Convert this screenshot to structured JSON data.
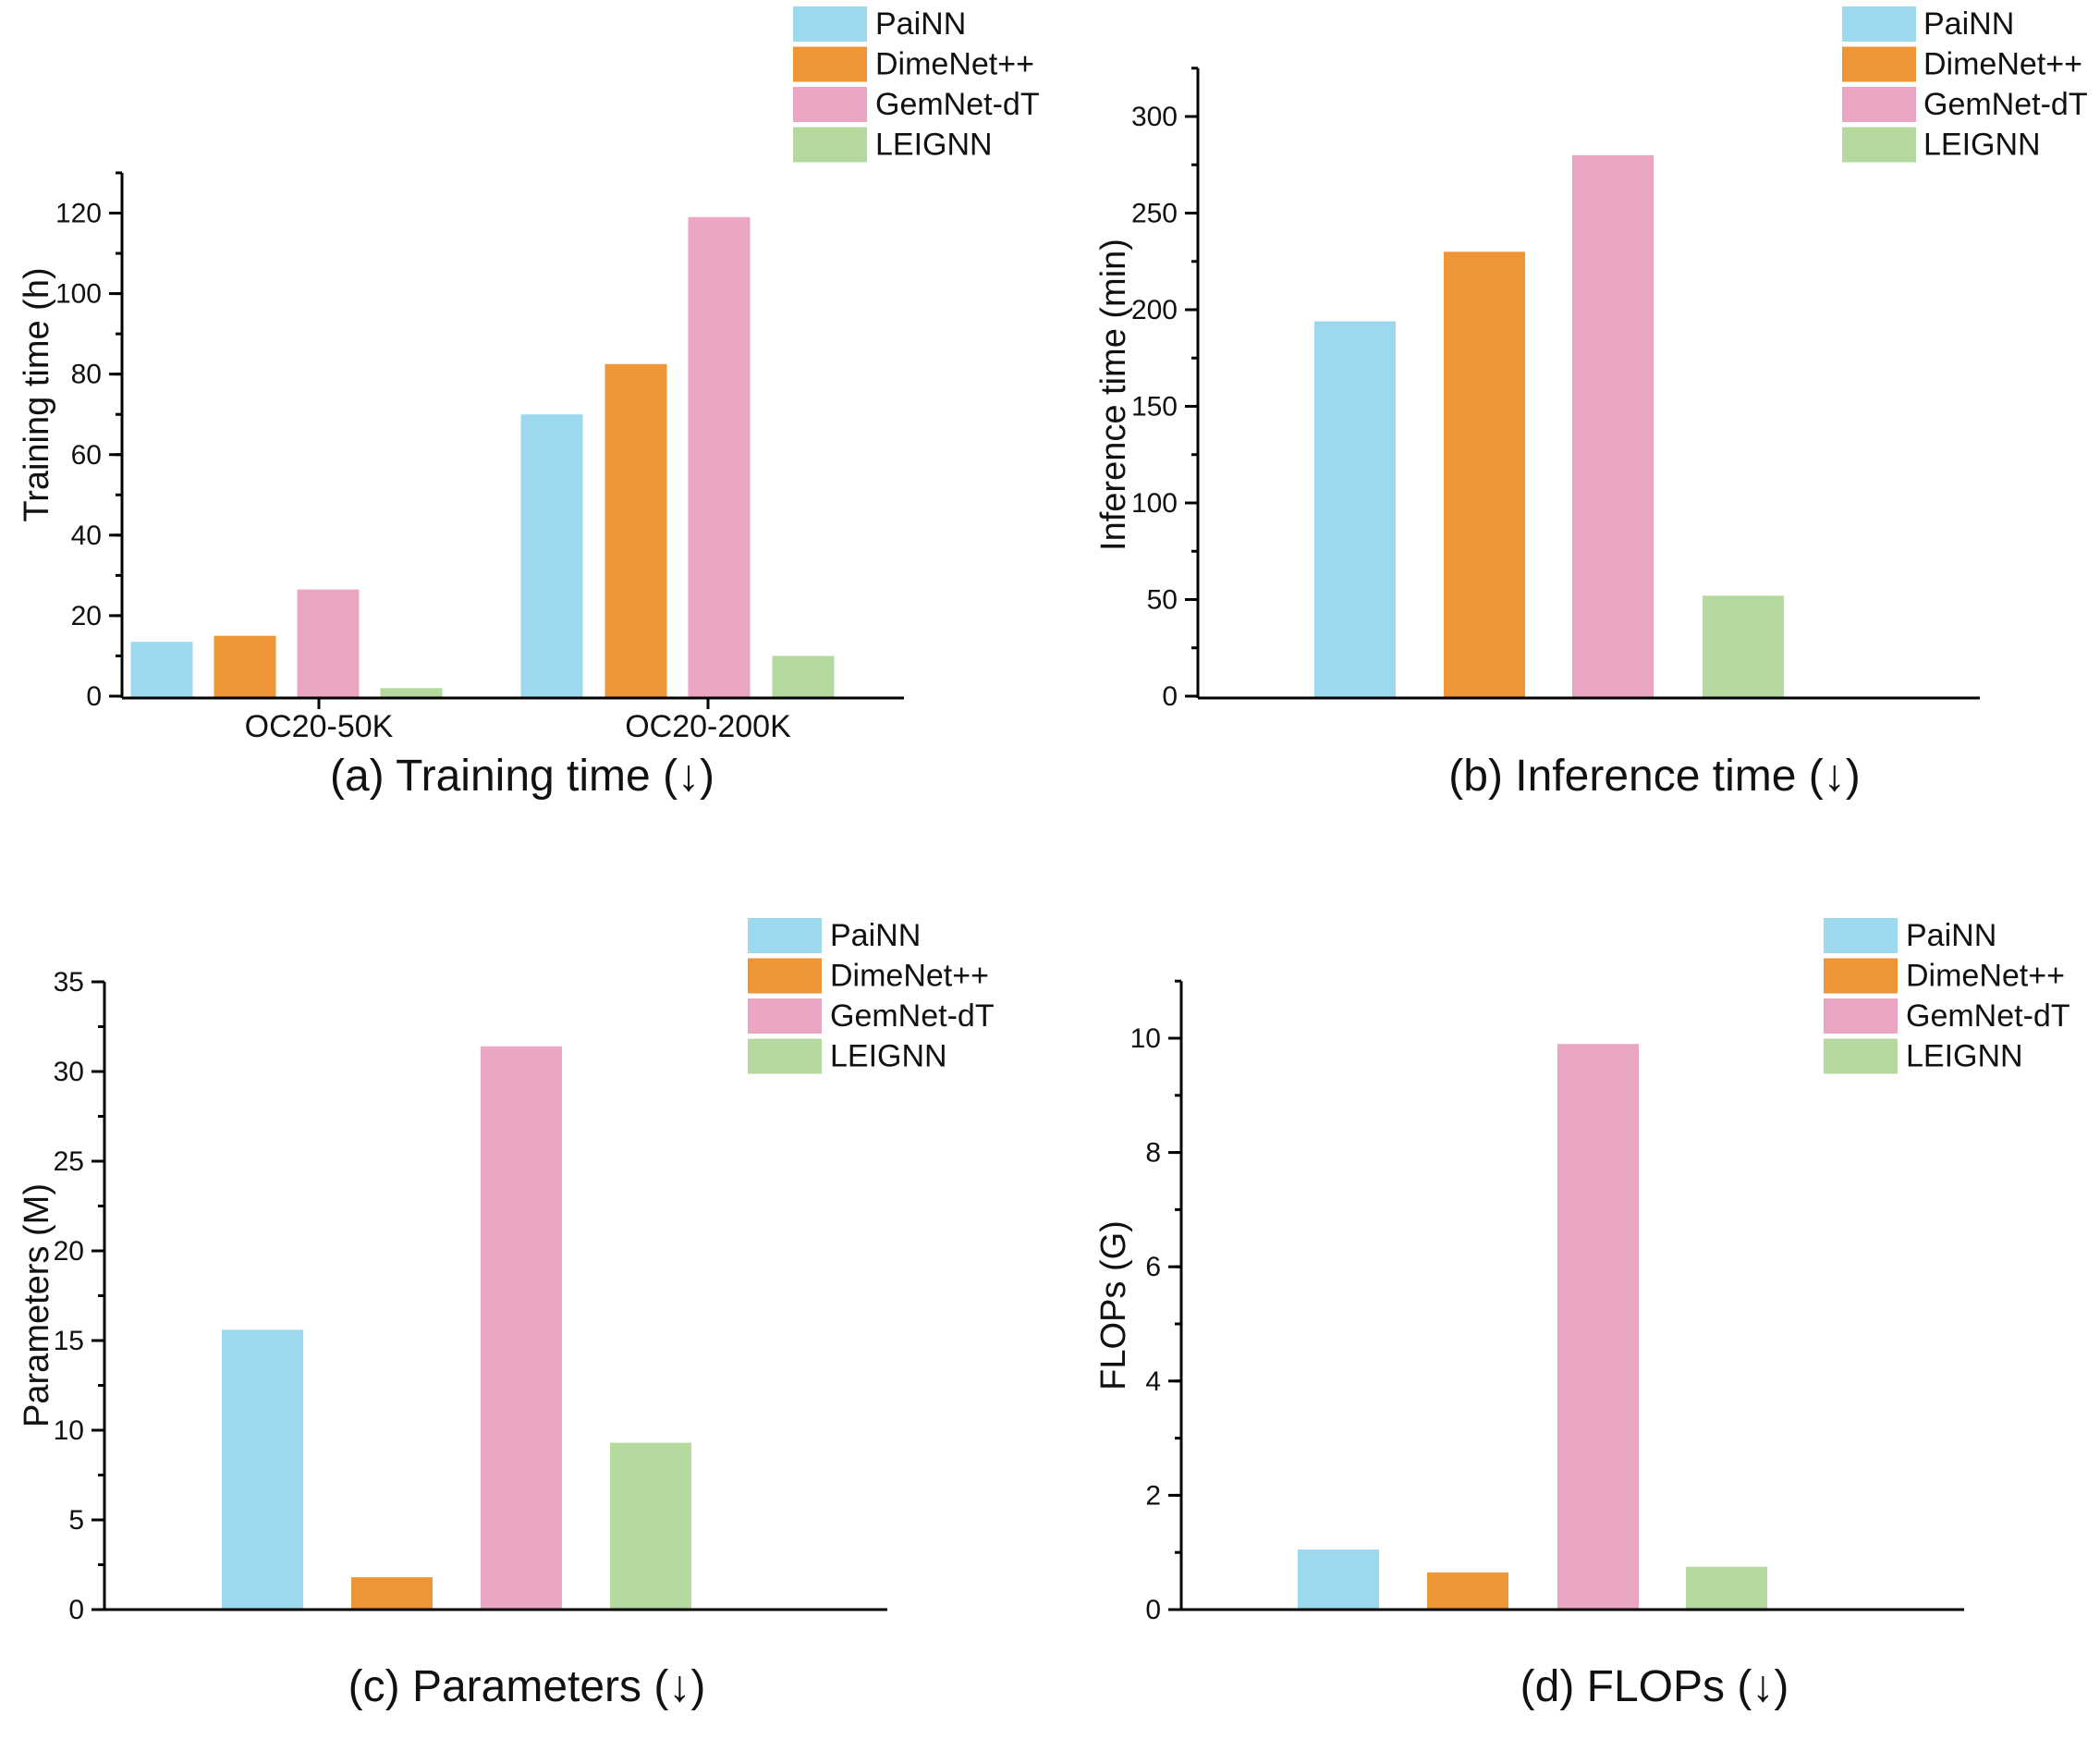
{
  "series_colors": {
    "PaiNN": "#9dd9ee",
    "DimeNet++": "#ee9637",
    "GemNet-dT": "#eaa6c2",
    "LEIGNN": "#b5d89f"
  },
  "chart_data": [
    {
      "type": "bar",
      "caption": "(a) Training time (↓)",
      "ylabel": "Training time (h)",
      "ylim": [
        0,
        130
      ],
      "yticks": [
        0,
        20,
        40,
        60,
        80,
        100,
        120
      ],
      "categories": [
        "OC20-50K",
        "OC20-200K"
      ],
      "legend": [
        "PaiNN",
        "DimeNet++",
        "GemNet-dT",
        "LEIGNN"
      ],
      "series": [
        {
          "name": "PaiNN",
          "values": [
            13.5,
            70
          ]
        },
        {
          "name": "DimeNet++",
          "values": [
            15,
            82.5
          ]
        },
        {
          "name": "GemNet-dT",
          "values": [
            26.5,
            119
          ]
        },
        {
          "name": "LEIGNN",
          "values": [
            2,
            10
          ]
        }
      ]
    },
    {
      "type": "bar",
      "caption": "(b) Inference time (↓)",
      "ylabel": "Inference time (min)",
      "ylim": [
        0,
        325
      ],
      "yticks": [
        0,
        50,
        100,
        150,
        200,
        250,
        300
      ],
      "categories": [
        ""
      ],
      "legend": [
        "PaiNN",
        "DimeNet++",
        "GemNet-dT",
        "LEIGNN"
      ],
      "series": [
        {
          "name": "PaiNN",
          "values": [
            194
          ]
        },
        {
          "name": "DimeNet++",
          "values": [
            230
          ]
        },
        {
          "name": "GemNet-dT",
          "values": [
            280
          ]
        },
        {
          "name": "LEIGNN",
          "values": [
            52
          ]
        }
      ]
    },
    {
      "type": "bar",
      "caption": "(c) Parameters (↓)",
      "ylabel": "Parameters (M)",
      "ylim": [
        0,
        35
      ],
      "yticks": [
        0,
        5,
        10,
        15,
        20,
        25,
        30,
        35
      ],
      "categories": [
        ""
      ],
      "legend": [
        "PaiNN",
        "DimeNet++",
        "GemNet-dT",
        "LEIGNN"
      ],
      "series": [
        {
          "name": "PaiNN",
          "values": [
            15.6
          ]
        },
        {
          "name": "DimeNet++",
          "values": [
            1.8
          ]
        },
        {
          "name": "GemNet-dT",
          "values": [
            31.4
          ]
        },
        {
          "name": "LEIGNN",
          "values": [
            9.3
          ]
        }
      ]
    },
    {
      "type": "bar",
      "caption": "(d) FLOPs (↓)",
      "ylabel": "FLOPs (G)",
      "ylim": [
        0,
        11
      ],
      "yticks": [
        0,
        2,
        4,
        6,
        8,
        10
      ],
      "categories": [
        ""
      ],
      "legend": [
        "PaiNN",
        "DimeNet++",
        "GemNet-dT",
        "LEIGNN"
      ],
      "series": [
        {
          "name": "PaiNN",
          "values": [
            1.05
          ]
        },
        {
          "name": "DimeNet++",
          "values": [
            0.65
          ]
        },
        {
          "name": "GemNet-dT",
          "values": [
            9.9
          ]
        },
        {
          "name": "LEIGNN",
          "values": [
            0.75
          ]
        }
      ]
    }
  ]
}
